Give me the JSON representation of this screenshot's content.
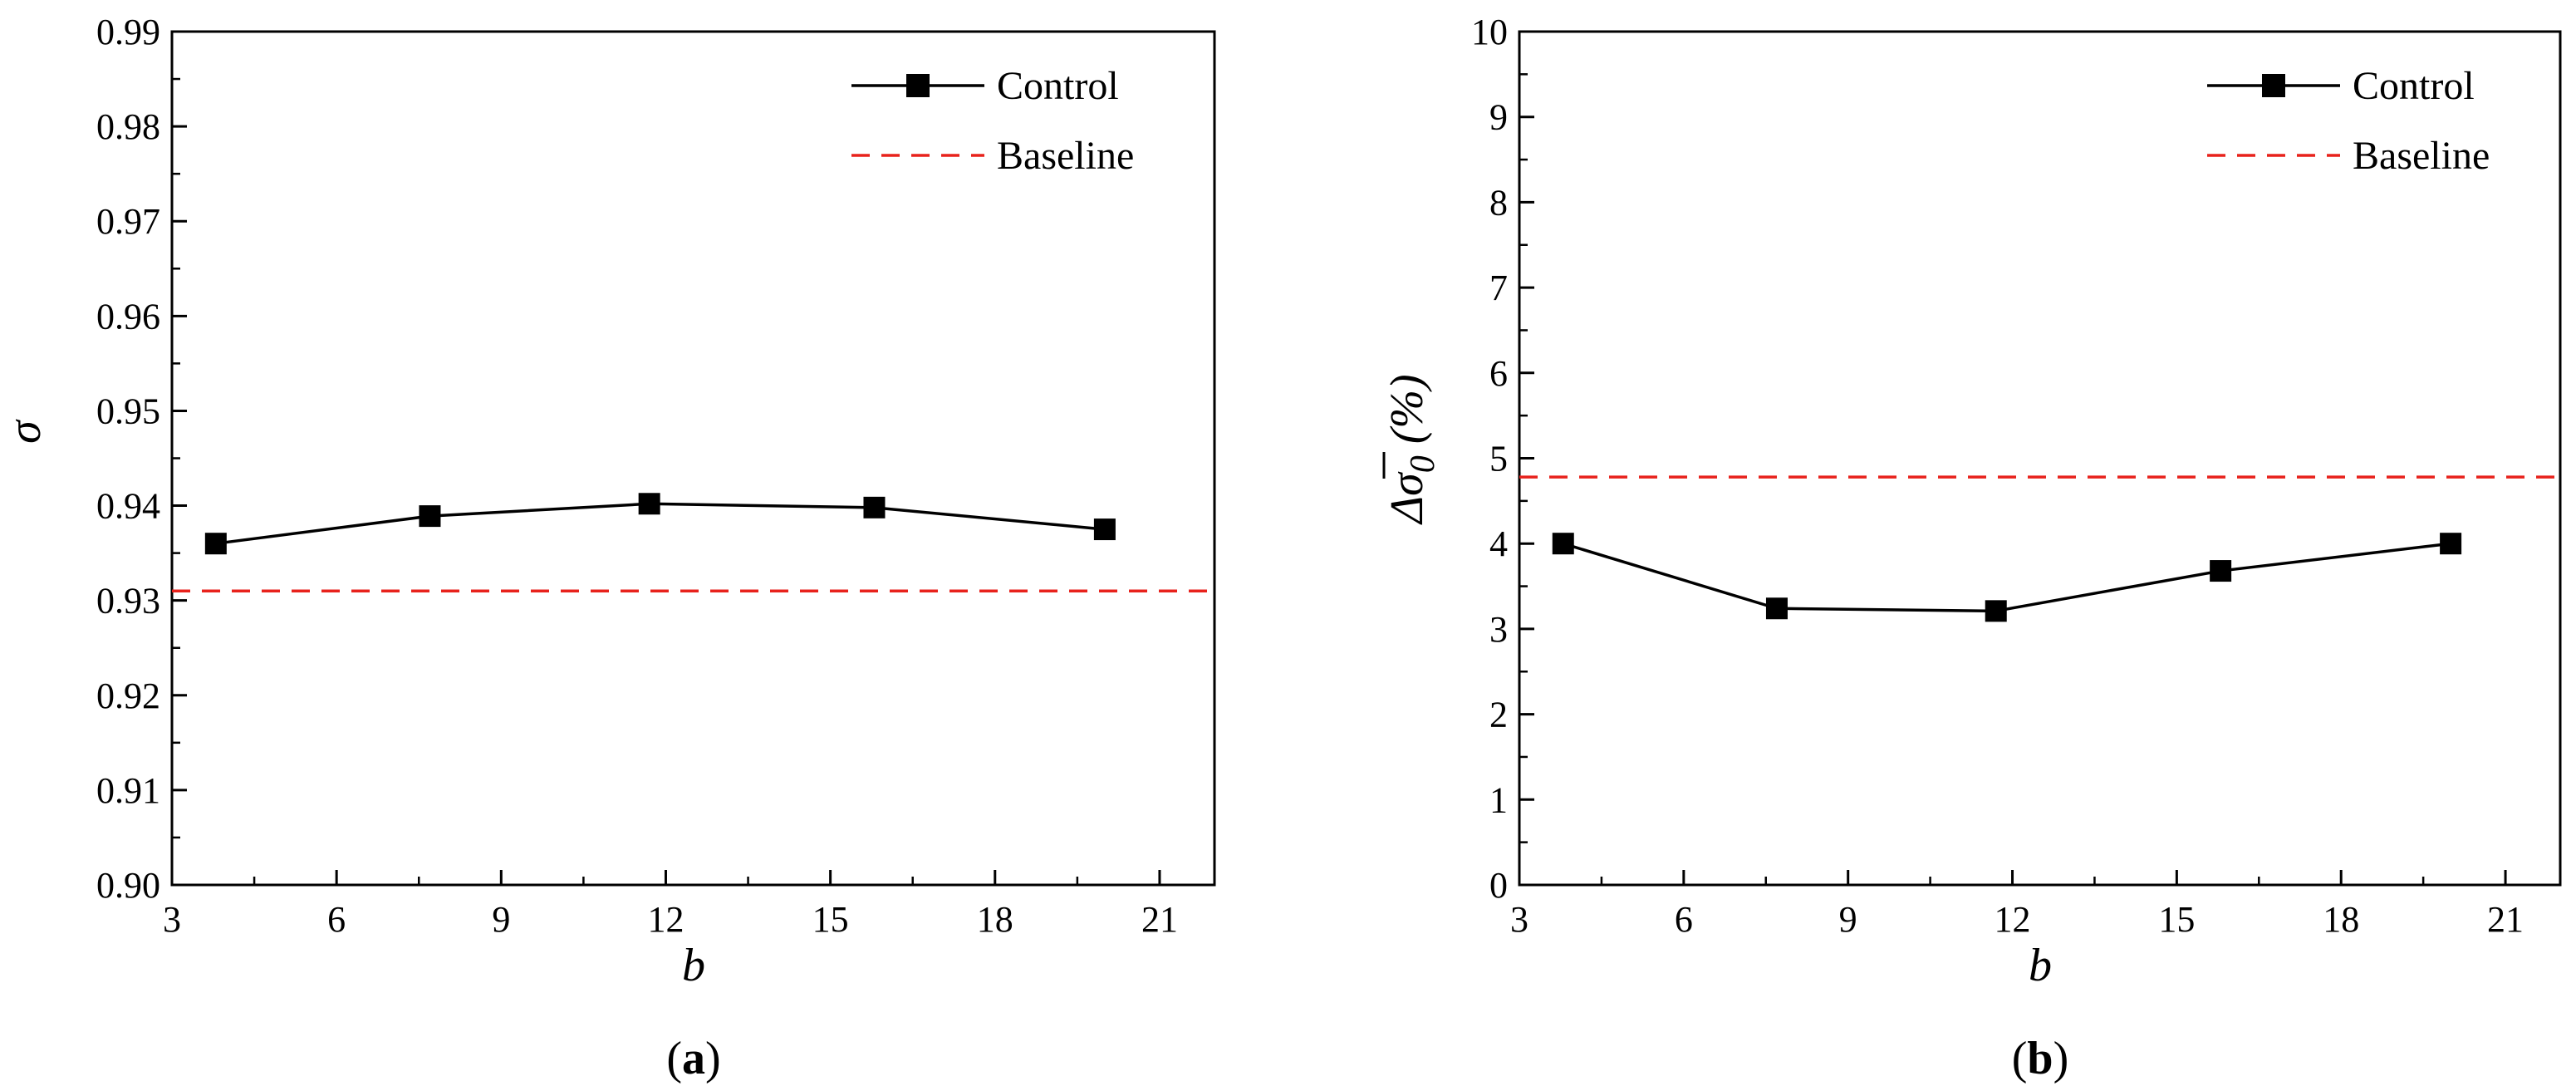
{
  "chart_data": [
    {
      "type": "line",
      "panel_label": "a",
      "xlabel": "b",
      "ylabel": "σ",
      "xlim": [
        3,
        22
      ],
      "ylim": [
        0.9,
        0.99
      ],
      "xticks": [
        3,
        6,
        9,
        12,
        15,
        18,
        21
      ],
      "yticks": [
        0.9,
        0.91,
        0.92,
        0.93,
        0.94,
        0.95,
        0.96,
        0.97,
        0.98,
        0.99
      ],
      "x_tick_labels": [
        "3",
        "6",
        "9",
        "12",
        "15",
        "18",
        "21"
      ],
      "y_tick_labels": [
        "0.90",
        "0.91",
        "0.92",
        "0.93",
        "0.94",
        "0.95",
        "0.96",
        "0.97",
        "0.98",
        "0.99"
      ],
      "series": [
        {
          "name": "Control",
          "style": "solid-square",
          "color": "#000000",
          "x": [
            3.8,
            7.7,
            11.7,
            15.8,
            20.0
          ],
          "y": [
            0.936,
            0.9389,
            0.9402,
            0.9398,
            0.9375
          ]
        },
        {
          "name": "Baseline",
          "style": "dashed",
          "color": "#e8221c",
          "constant": 0.931
        }
      ],
      "legend": [
        "Control",
        "Baseline"
      ],
      "legend_position": "top-right"
    },
    {
      "type": "line",
      "panel_label": "b",
      "xlabel": "b",
      "ylabel_parts": {
        "main": "Δ",
        "sym": "σ",
        "sub": "0",
        "unit": "(%)"
      },
      "xlim": [
        3,
        22
      ],
      "ylim": [
        0,
        10
      ],
      "xticks": [
        3,
        6,
        9,
        12,
        15,
        18,
        21
      ],
      "yticks": [
        0,
        1,
        2,
        3,
        4,
        5,
        6,
        7,
        8,
        9,
        10
      ],
      "x_tick_labels": [
        "3",
        "6",
        "9",
        "12",
        "15",
        "18",
        "21"
      ],
      "y_tick_labels": [
        "0",
        "1",
        "2",
        "3",
        "4",
        "5",
        "6",
        "7",
        "8",
        "9",
        "10"
      ],
      "series": [
        {
          "name": "Control",
          "style": "solid-square",
          "color": "#000000",
          "x": [
            3.8,
            7.7,
            11.7,
            15.8,
            20.0
          ],
          "y": [
            4.0,
            3.24,
            3.21,
            3.68,
            4.0
          ]
        },
        {
          "name": "Baseline",
          "style": "dashed",
          "color": "#e8221c",
          "constant": 4.78
        }
      ],
      "legend": [
        "Control",
        "Baseline"
      ],
      "legend_position": "top-right"
    }
  ]
}
